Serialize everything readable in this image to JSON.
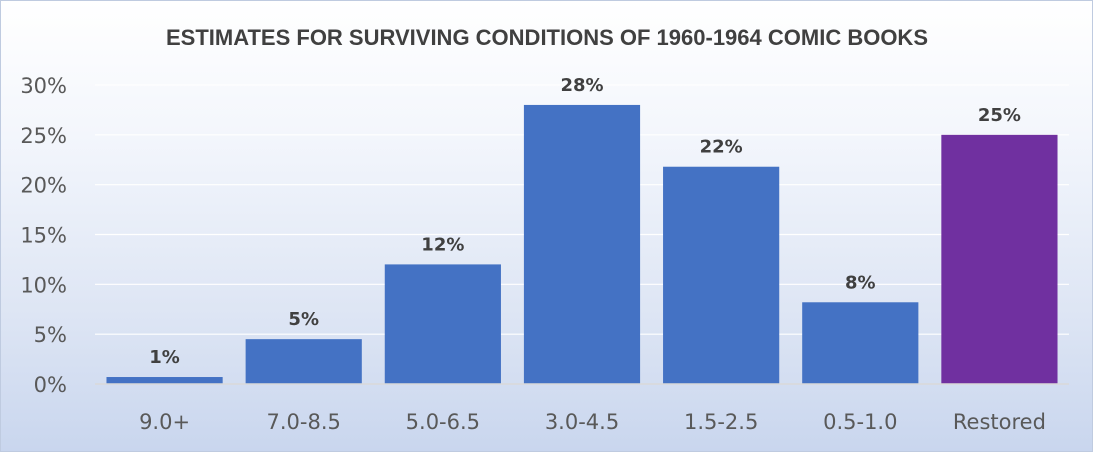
{
  "chart_data": {
    "type": "bar",
    "title": "ESTIMATES FOR SURVIVING CONDITIONS OF 1960-1964 COMIC BOOKS",
    "xlabel": "",
    "ylabel": "",
    "categories": [
      "9.0+",
      "7.0-8.5",
      "5.0-6.5",
      "3.0-4.5",
      "1.5-2.5",
      "0.5-1.0",
      "Restored"
    ],
    "values": [
      0.7,
      4.5,
      12,
      28,
      21.8,
      8.2,
      25
    ],
    "data_labels": [
      "1%",
      "5%",
      "12%",
      "28%",
      "22%",
      "8%",
      "25%"
    ],
    "bar_colors": [
      "#4472c4",
      "#4472c4",
      "#4472c4",
      "#4472c4",
      "#4472c4",
      "#4472c4",
      "#7030a0"
    ],
    "ylim": [
      0,
      30
    ],
    "yticks": [
      0,
      5,
      10,
      15,
      20,
      25,
      30
    ],
    "ytick_labels": [
      "0%",
      "5%",
      "10%",
      "15%",
      "20%",
      "25%",
      "30%"
    ],
    "grid": true,
    "legend": "none"
  }
}
